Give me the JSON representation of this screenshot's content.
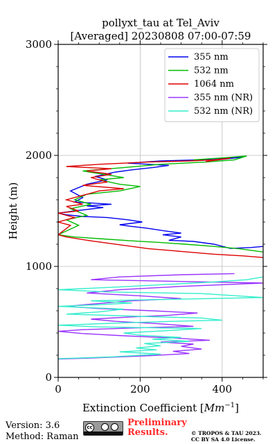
{
  "title": [
    "pollyxt_tau at Tel_Aviv",
    "[Averaged] 20230808 07:00-07:59"
  ],
  "footer": {
    "version": "Version: 3.6",
    "method": "Method: Raman",
    "preliminary": [
      "Preliminary",
      "Results."
    ],
    "copyright": [
      "© TROPOS & TAU 2023.",
      "CC BY SA 4.0 License."
    ],
    "license_badge": "cc"
  },
  "chart_data": {
    "type": "line",
    "xlabel": "Extinction Coefficient [Mm^-1]",
    "xlabel_main": "Extinction Coefficient [",
    "xlabel_unit": "Mm",
    "xlabel_exp": "−1",
    "xlabel_close": "]",
    "ylabel": "Height (m)",
    "xlim": [
      0,
      500
    ],
    "ylim": [
      0,
      3000
    ],
    "xticks": [
      0,
      200,
      400
    ],
    "yticks": [
      0,
      1000,
      2000,
      3000
    ],
    "grid": true,
    "legend_position": "top-right",
    "series": [
      {
        "name": "355 nm",
        "color": "#0000ee",
        "points": [
          [
            500,
            1180
          ],
          [
            470,
            1170
          ],
          [
            420,
            1162
          ],
          [
            380,
            1200
          ],
          [
            330,
            1225
          ],
          [
            270,
            1235
          ],
          [
            300,
            1265
          ],
          [
            255,
            1285
          ],
          [
            300,
            1300
          ],
          [
            260,
            1320
          ],
          [
            215,
            1345
          ],
          [
            180,
            1360
          ],
          [
            150,
            1375
          ],
          [
            205,
            1400
          ],
          [
            170,
            1420
          ],
          [
            120,
            1440
          ],
          [
            60,
            1450
          ],
          [
            20,
            1465
          ],
          [
            0,
            1480
          ],
          [
            40,
            1500
          ],
          [
            110,
            1530
          ],
          [
            70,
            1545
          ],
          [
            130,
            1560
          ],
          [
            40,
            1580
          ],
          [
            60,
            1620
          ],
          [
            30,
            1680
          ],
          [
            70,
            1740
          ],
          [
            120,
            1780
          ],
          [
            90,
            1810
          ],
          [
            140,
            1850
          ],
          [
            180,
            1870
          ],
          [
            230,
            1890
          ],
          [
            270,
            1910
          ],
          [
            170,
            1930
          ],
          [
            250,
            1950
          ],
          [
            340,
            1960
          ],
          [
            400,
            1975
          ],
          [
            450,
            1985
          ],
          [
            390,
            1960
          ],
          [
            320,
            1955
          ]
        ]
      },
      {
        "name": "532 nm",
        "color": "#00bb00",
        "points": [
          [
            500,
            1130
          ],
          [
            440,
            1160
          ],
          [
            380,
            1180
          ],
          [
            310,
            1200
          ],
          [
            250,
            1215
          ],
          [
            180,
            1230
          ],
          [
            100,
            1250
          ],
          [
            40,
            1265
          ],
          [
            0,
            1285
          ],
          [
            50,
            1370
          ],
          [
            20,
            1420
          ],
          [
            70,
            1460
          ],
          [
            30,
            1520
          ],
          [
            80,
            1560
          ],
          [
            40,
            1600
          ],
          [
            70,
            1650
          ],
          [
            150,
            1680
          ],
          [
            200,
            1720
          ],
          [
            150,
            1740
          ],
          [
            100,
            1780
          ],
          [
            160,
            1800
          ],
          [
            110,
            1830
          ],
          [
            60,
            1860
          ],
          [
            160,
            1890
          ],
          [
            250,
            1920
          ],
          [
            360,
            1940
          ],
          [
            430,
            1960
          ],
          [
            460,
            1995
          ],
          [
            410,
            1980
          ],
          [
            330,
            1960
          ]
        ]
      },
      {
        "name": "1064 nm",
        "color": "#dd0000",
        "points": [
          [
            500,
            1080
          ],
          [
            450,
            1095
          ],
          [
            380,
            1110
          ],
          [
            300,
            1135
          ],
          [
            220,
            1160
          ],
          [
            150,
            1195
          ],
          [
            80,
            1230
          ],
          [
            20,
            1265
          ],
          [
            0,
            1285
          ],
          [
            30,
            1370
          ],
          [
            0,
            1400
          ],
          [
            40,
            1440
          ],
          [
            0,
            1480
          ],
          [
            50,
            1500
          ],
          [
            20,
            1540
          ],
          [
            60,
            1560
          ],
          [
            20,
            1600
          ],
          [
            60,
            1640
          ],
          [
            100,
            1680
          ],
          [
            160,
            1700
          ],
          [
            60,
            1730
          ],
          [
            120,
            1760
          ],
          [
            80,
            1800
          ],
          [
            130,
            1830
          ],
          [
            70,
            1860
          ],
          [
            130,
            1880
          ],
          [
            20,
            1900
          ],
          [
            100,
            1920
          ],
          [
            220,
            1940
          ],
          [
            320,
            1950
          ],
          [
            380,
            1960
          ],
          [
            420,
            1975
          ],
          [
            360,
            1945
          ]
        ]
      },
      {
        "name": "355 nm (NR)",
        "color": "#9933ff",
        "points": [
          [
            430,
            935
          ],
          [
            300,
            925
          ],
          [
            150,
            905
          ],
          [
            80,
            880
          ],
          [
            500,
            850
          ],
          [
            300,
            820
          ],
          [
            150,
            790
          ],
          [
            70,
            760
          ],
          [
            200,
            735
          ],
          [
            300,
            710
          ],
          [
            180,
            690
          ],
          [
            80,
            660
          ],
          [
            20,
            640
          ],
          [
            100,
            620
          ],
          [
            230,
            600
          ],
          [
            340,
            580
          ],
          [
            270,
            560
          ],
          [
            180,
            545
          ],
          [
            80,
            525
          ],
          [
            140,
            505
          ],
          [
            240,
            485
          ],
          [
            330,
            460
          ],
          [
            180,
            445
          ],
          [
            60,
            430
          ],
          [
            0,
            415
          ],
          [
            60,
            395
          ],
          [
            160,
            375
          ],
          [
            280,
            355
          ],
          [
            370,
            335
          ],
          [
            250,
            318
          ],
          [
            330,
            300
          ],
          [
            300,
            280
          ],
          [
            350,
            255
          ],
          [
            280,
            235
          ],
          [
            320,
            215
          ],
          [
            220,
            195
          ],
          [
            80,
            175
          ],
          [
            0,
            165
          ]
        ]
      },
      {
        "name": "532 nm (NR)",
        "color": "#33eecc",
        "points": [
          [
            500,
            905
          ],
          [
            460,
            880
          ],
          [
            380,
            860
          ],
          [
            280,
            840
          ],
          [
            150,
            815
          ],
          [
            0,
            790
          ],
          [
            120,
            770
          ],
          [
            350,
            755
          ],
          [
            500,
            720
          ],
          [
            300,
            705
          ],
          [
            80,
            690
          ],
          [
            180,
            670
          ],
          [
            100,
            655
          ],
          [
            0,
            640
          ],
          [
            160,
            615
          ],
          [
            100,
            590
          ],
          [
            20,
            570
          ],
          [
            200,
            550
          ],
          [
            350,
            535
          ],
          [
            400,
            515
          ],
          [
            280,
            505
          ],
          [
            150,
            490
          ],
          [
            0,
            470
          ],
          [
            100,
            455
          ],
          [
            350,
            440
          ],
          [
            260,
            420
          ],
          [
            160,
            400
          ],
          [
            200,
            380
          ],
          [
            300,
            360
          ],
          [
            230,
            345
          ],
          [
            320,
            325
          ],
          [
            210,
            305
          ],
          [
            250,
            285
          ],
          [
            190,
            265
          ],
          [
            240,
            248
          ],
          [
            150,
            230
          ],
          [
            250,
            210
          ],
          [
            130,
            185
          ],
          [
            0,
            168
          ]
        ]
      }
    ]
  }
}
